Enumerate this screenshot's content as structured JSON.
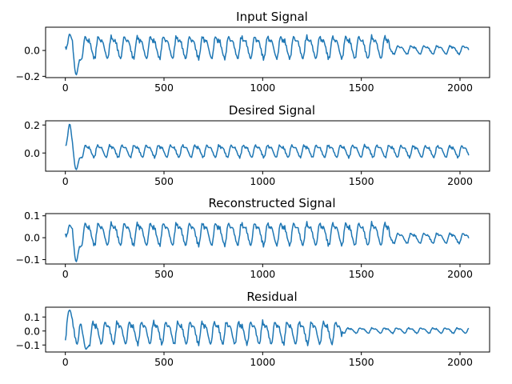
{
  "chart_data": [
    {
      "type": "line",
      "title": "Input Signal",
      "xlim": [
        -100,
        2150
      ],
      "ylim": [
        -0.21,
        0.18
      ],
      "xticks": [
        0,
        500,
        1000,
        1500,
        2000
      ],
      "xtick_labels": [
        "0",
        "500",
        "1000",
        "1500",
        "2000"
      ],
      "yticks": [
        0.0,
        -0.2
      ],
      "ytick_labels": [
        "0.0",
        "−0.2"
      ],
      "color": "#1f77b4",
      "series": [
        {
          "name": "Input Signal",
          "x": [
            0,
            2047
          ],
          "shape": {
            "period": 66,
            "phase": 28,
            "peak": 0.145,
            "trough": -0.08,
            "gentle_after": 1640,
            "gentle_peak": 0.05,
            "gentle_trough": -0.035,
            "initial_peak": 0.13,
            "initial_dip": -0.19,
            "dip_at": 55
          }
        }
      ]
    },
    {
      "type": "line",
      "title": "Desired Signal",
      "xlim": [
        -100,
        2150
      ],
      "ylim": [
        -0.13,
        0.23
      ],
      "xticks": [
        0,
        500,
        1000,
        1500,
        2000
      ],
      "xtick_labels": [
        "0",
        "500",
        "1000",
        "1500",
        "2000"
      ],
      "yticks": [
        0.2,
        0.0
      ],
      "ytick_labels": [
        "0.2",
        "0.0"
      ],
      "color": "#1f77b4",
      "series": [
        {
          "name": "Desired Signal",
          "x": [
            0,
            2047
          ],
          "shape": {
            "period": 61.5,
            "phase": 34,
            "peak": 0.075,
            "trough": -0.04,
            "gentle_after": 1700,
            "gentle_peak": 0.07,
            "gentle_trough": -0.04,
            "initial_peak": 0.21,
            "initial_dip": -0.12,
            "dip_at": 55
          }
        }
      ]
    },
    {
      "type": "line",
      "title": "Reconstructed Signal",
      "xlim": [
        -100,
        2150
      ],
      "ylim": [
        -0.12,
        0.11
      ],
      "xticks": [
        0,
        500,
        1000,
        1500,
        2000
      ],
      "xtick_labels": [
        "0",
        "500",
        "1000",
        "1500",
        "2000"
      ],
      "yticks": [
        0.1,
        0.0,
        -0.1
      ],
      "ytick_labels": [
        "0.1",
        "0.0",
        "−0.1"
      ],
      "color": "#1f77b4",
      "series": [
        {
          "name": "Reconstructed Signal",
          "x": [
            0,
            2047
          ],
          "shape": {
            "period": 66,
            "phase": 28,
            "peak": 0.088,
            "trough": -0.045,
            "gentle_after": 1640,
            "gentle_peak": 0.03,
            "gentle_trough": -0.03,
            "initial_peak": 0.06,
            "initial_dip": -0.11,
            "dip_at": 55
          }
        }
      ]
    },
    {
      "type": "line",
      "title": "Residual",
      "xlim": [
        -100,
        2150
      ],
      "ylim": [
        -0.15,
        0.17
      ],
      "xticks": [
        0,
        500,
        1000,
        1500,
        2000
      ],
      "xtick_labels": [
        "0",
        "500",
        "1000",
        "1500",
        "2000"
      ],
      "yticks": [
        0.1,
        0.0,
        -0.1
      ],
      "ytick_labels": [
        "0.1",
        "0.0",
        "−0.1"
      ],
      "color": "#1f77b4",
      "series": [
        {
          "name": "Residual",
          "x": [
            0,
            2047
          ],
          "shape": {
            "period": 61.5,
            "phase": 10,
            "peak": 0.1,
            "trough": -0.11,
            "gentle_after": 1400,
            "gentle_peak": 0.03,
            "gentle_trough": -0.02,
            "initial_peak": 0.15,
            "initial_dip": -0.13,
            "dip_at": 105
          }
        }
      ]
    }
  ]
}
